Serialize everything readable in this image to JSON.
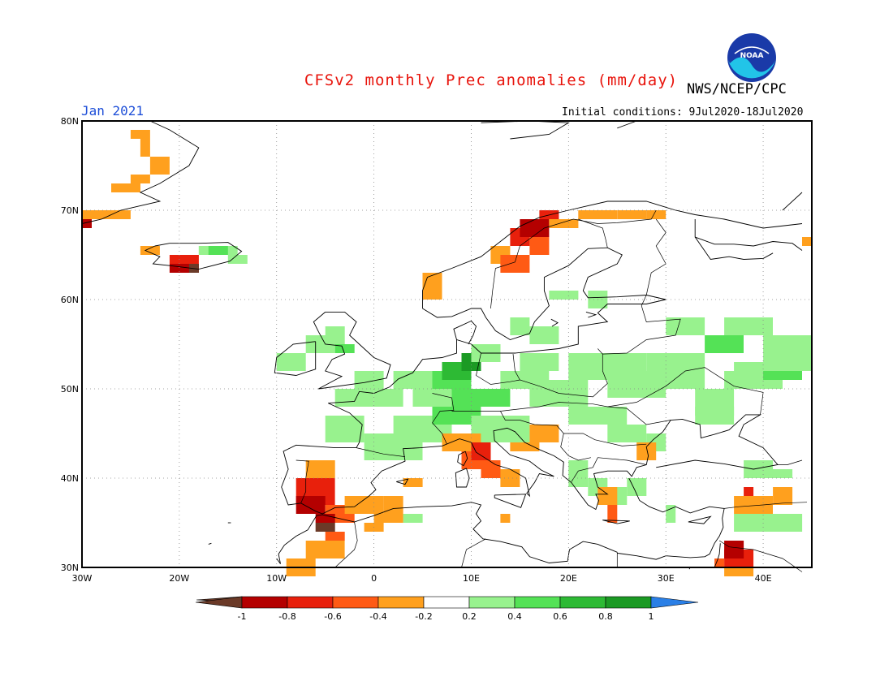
{
  "header": {
    "title": "CFSv2 monthly Prec anomalies (mm/day)",
    "org": "NWS/NCEP/CPC",
    "logo_text": "NOAA",
    "month": "Jan 2021",
    "init_conditions": "Initial conditions: 9Jul2020-18Jul2020"
  },
  "map": {
    "lat_labels": [
      "80N",
      "70N",
      "60N",
      "50N",
      "40N",
      "30N"
    ],
    "lon_labels": [
      "30W",
      "20W",
      "10W",
      "0",
      "10E",
      "20E",
      "30E",
      "40E"
    ],
    "lon_range": [
      -30,
      45
    ],
    "lat_range": [
      30,
      80
    ],
    "grid": "dotted",
    "colors": {
      "lt_-1": "#6b3a28",
      "-1_-0.8": "#b40000",
      "-0.8_-0.6": "#e8200c",
      "-0.6_-0.4": "#ff5a14",
      "-0.4_-0.2": "#ffa01e",
      "0.2_0.4": "#98f28e",
      "0.4_0.6": "#54e256",
      "0.6_0.8": "#2dba34",
      "0.8_1": "#1b9a24",
      "gt_1": "#2a7fe6"
    }
  },
  "colorbar": {
    "labels": [
      "-1",
      "-0.8",
      "-0.6",
      "-0.4",
      "-0.2",
      "0.2",
      "0.4",
      "0.6",
      "0.8",
      "1"
    ],
    "colors": [
      "#6b3a28",
      "#b40000",
      "#e8200c",
      "#ff5a14",
      "#ffa01e",
      "#ffffff",
      "#98f28e",
      "#54e256",
      "#2dba34",
      "#1b9a24",
      "#2a7fe6"
    ]
  }
}
